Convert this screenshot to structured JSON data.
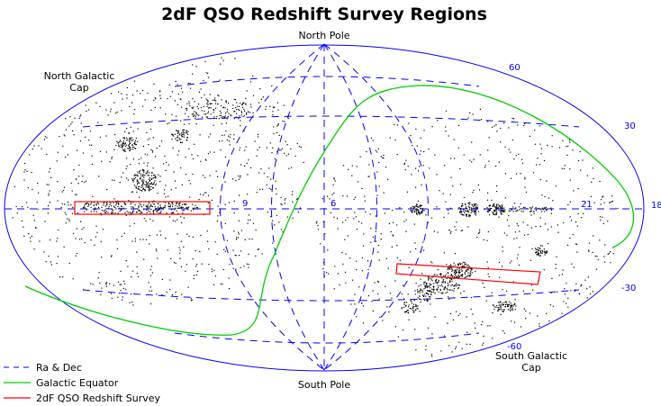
{
  "title": "2dF QSO Redshift Survey Regions",
  "poles": {
    "north": "North Pole",
    "south": "South Pole"
  },
  "caps": {
    "north_line1": "North Galactic",
    "north_line2": "Cap",
    "south_line1": "South Galactic",
    "south_line2": "Cap"
  },
  "grid_labels": {
    "ra": [
      "9",
      "6",
      "21"
    ],
    "dec": [
      "60",
      "30",
      "18",
      "-30",
      "-60"
    ]
  },
  "legend": [
    {
      "label": "Ra & Dec",
      "color": "#0000ff",
      "style": "dashed"
    },
    {
      "label": "Galactic Equator",
      "color": "#00cc00",
      "style": "solid"
    },
    {
      "label": "2dF QSO Redshift Survey",
      "color": "#ff0000",
      "style": "solid"
    }
  ],
  "colors": {
    "grid": "#0000ff",
    "galactic_equator": "#00cc00",
    "survey": "#ff0000",
    "points": "#000000"
  }
}
